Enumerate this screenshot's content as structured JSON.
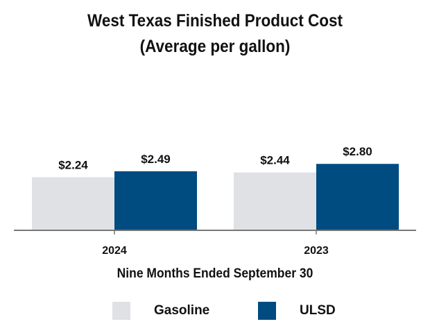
{
  "chart_data": {
    "type": "bar",
    "title": "West Texas Finished Product Cost",
    "subtitle": "(Average per gallon)",
    "categories": [
      "2024",
      "2023"
    ],
    "series": [
      {
        "name": "Gasoline",
        "values": [
          2.24,
          2.44
        ],
        "labels": [
          "$2.24",
          "$2.44"
        ],
        "color": "#e0e1e5"
      },
      {
        "name": "ULSD",
        "values": [
          2.49,
          2.8
        ],
        "labels": [
          "$2.49",
          "$2.80"
        ],
        "color": "#004b80"
      }
    ],
    "xlabel": "Nine Months Ended September 30",
    "ylabel": "",
    "grid": false,
    "legend_position": "bottom"
  }
}
